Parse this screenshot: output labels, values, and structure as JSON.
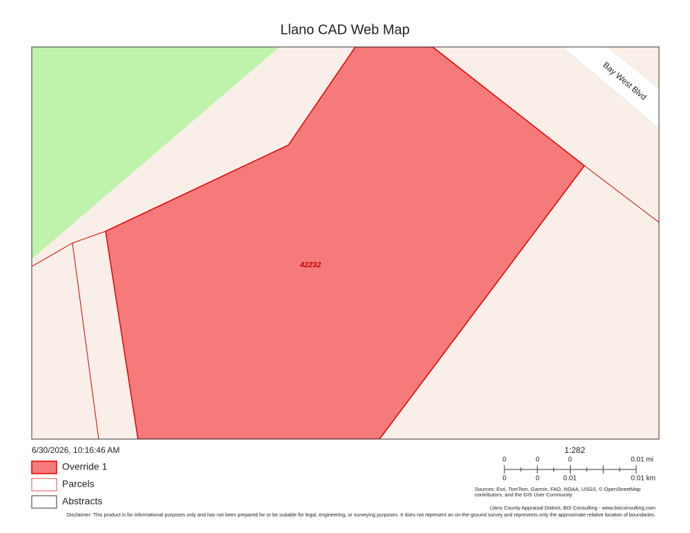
{
  "header": {
    "title": "Llano CAD Web Map"
  },
  "map": {
    "street_label": "Bay West Blvd",
    "parcel_label": "42232"
  },
  "info": {
    "timestamp": "6/30/2026, 10:16:46 AM"
  },
  "legend": {
    "items": [
      {
        "label": "Override 1"
      },
      {
        "label": "Parcels"
      },
      {
        "label": "Abstracts"
      }
    ]
  },
  "scale": {
    "ratio": "1:282",
    "miles_labels": [
      "0",
      "0",
      "0",
      "0.01 mi"
    ],
    "km_labels": [
      "0",
      "0",
      "0.01",
      "0.01 km"
    ]
  },
  "attribution": {
    "sources": [
      "Sources: Esri, TomTom, Garmin, FAO, NOAA, USGS, © OpenStreetMap",
      "contributors, and the GIS User Community"
    ],
    "credit": "Llano County Appraisal District, BIS Consulting - www.bisconsulting.com"
  },
  "disclaimer": "Disclaimer: This product is for informational purposes only and has not been prepared for or be suitable for legal, engineering, or surveying purposes. It does not represent an on-the-ground survey and represents only the approximate relative location of boundaries."
}
